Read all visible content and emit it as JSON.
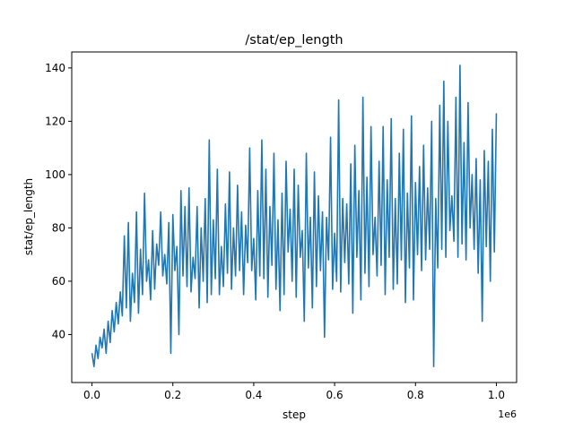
{
  "chart_data": {
    "type": "line",
    "title": "/stat/ep_length",
    "xlabel": "step",
    "ylabel": "stat/ep_length",
    "x_offset_label": "1e6",
    "xlim": [
      -0.05,
      1.05
    ],
    "ylim": [
      22,
      146
    ],
    "xticks": [
      0.0,
      0.2,
      0.4,
      0.6,
      0.8,
      1.0
    ],
    "xtick_labels": [
      "0.0",
      "0.2",
      "0.4",
      "0.6",
      "0.8",
      "1.0"
    ],
    "yticks": [
      40,
      60,
      80,
      100,
      120,
      140
    ],
    "ytick_labels": [
      "40",
      "60",
      "80",
      "100",
      "120",
      "140"
    ],
    "grid": false,
    "legend": "none",
    "series": [
      {
        "color": "#1f77b4",
        "x": [
          0.0,
          0.005,
          0.01,
          0.015,
          0.02,
          0.025,
          0.03,
          0.035,
          0.04,
          0.045,
          0.05,
          0.055,
          0.06,
          0.065,
          0.07,
          0.075,
          0.08,
          0.085,
          0.09,
          0.095,
          0.1,
          0.105,
          0.11,
          0.115,
          0.12,
          0.125,
          0.13,
          0.135,
          0.14,
          0.145,
          0.15,
          0.155,
          0.16,
          0.165,
          0.17,
          0.175,
          0.18,
          0.185,
          0.19,
          0.195,
          0.2,
          0.205,
          0.21,
          0.215,
          0.22,
          0.225,
          0.23,
          0.235,
          0.24,
          0.245,
          0.25,
          0.255,
          0.26,
          0.265,
          0.27,
          0.275,
          0.28,
          0.285,
          0.29,
          0.295,
          0.3,
          0.305,
          0.31,
          0.315,
          0.32,
          0.325,
          0.33,
          0.335,
          0.34,
          0.345,
          0.35,
          0.355,
          0.36,
          0.365,
          0.37,
          0.375,
          0.38,
          0.385,
          0.39,
          0.395,
          0.4,
          0.405,
          0.41,
          0.415,
          0.42,
          0.425,
          0.43,
          0.435,
          0.44,
          0.445,
          0.45,
          0.455,
          0.46,
          0.465,
          0.47,
          0.475,
          0.48,
          0.485,
          0.49,
          0.495,
          0.5,
          0.505,
          0.51,
          0.515,
          0.52,
          0.525,
          0.53,
          0.535,
          0.54,
          0.545,
          0.55,
          0.555,
          0.56,
          0.565,
          0.57,
          0.575,
          0.58,
          0.585,
          0.59,
          0.595,
          0.6,
          0.605,
          0.61,
          0.615,
          0.62,
          0.625,
          0.63,
          0.635,
          0.64,
          0.645,
          0.65,
          0.655,
          0.66,
          0.665,
          0.67,
          0.675,
          0.68,
          0.685,
          0.69,
          0.695,
          0.7,
          0.705,
          0.71,
          0.715,
          0.72,
          0.725,
          0.73,
          0.735,
          0.74,
          0.745,
          0.75,
          0.755,
          0.76,
          0.765,
          0.77,
          0.775,
          0.78,
          0.785,
          0.79,
          0.795,
          0.8,
          0.805,
          0.81,
          0.815,
          0.82,
          0.825,
          0.83,
          0.835,
          0.84,
          0.845,
          0.85,
          0.855,
          0.86,
          0.865,
          0.87,
          0.875,
          0.88,
          0.885,
          0.89,
          0.895,
          0.9,
          0.905,
          0.91,
          0.915,
          0.92,
          0.925,
          0.93,
          0.935,
          0.94,
          0.945,
          0.95,
          0.955,
          0.96,
          0.965,
          0.97,
          0.975,
          0.98,
          0.985,
          0.99,
          0.995,
          1.0
        ],
        "y": [
          33,
          28,
          36,
          31,
          39,
          35,
          42,
          33,
          45,
          37,
          49,
          41,
          52,
          44,
          56,
          47,
          77,
          50,
          82,
          45,
          63,
          52,
          86,
          48,
          72,
          55,
          93,
          60,
          68,
          53,
          79,
          57,
          74,
          66,
          86,
          62,
          70,
          59,
          82,
          33,
          85,
          64,
          73,
          40,
          94,
          62,
          88,
          58,
          95,
          56,
          69,
          61,
          88,
          50,
          80,
          60,
          91,
          52,
          113,
          55,
          83,
          61,
          102,
          55,
          73,
          58,
          89,
          63,
          101,
          57,
          80,
          62,
          96,
          64,
          86,
          55,
          81,
          67,
          110,
          64,
          76,
          53,
          94,
          62,
          113,
          61,
          102,
          54,
          88,
          66,
          108,
          57,
          83,
          49,
          93,
          55,
          105,
          71,
          87,
          60,
          102,
          54,
          96,
          69,
          79,
          45,
          108,
          65,
          84,
          50,
          101,
          58,
          92,
          64,
          86,
          39,
          84,
          68,
          114,
          57,
          78,
          60,
          128,
          56,
          91,
          67,
          89,
          59,
          104,
          48,
          111,
          69,
          94,
          53,
          129,
          63,
          99,
          58,
          118,
          70,
          84,
          62,
          105,
          66,
          118,
          55,
          98,
          69,
          121,
          57,
          91,
          59,
          108,
          68,
          117,
          52,
          93,
          65,
          122,
          53,
          97,
          70,
          103,
          64,
          111,
          68,
          95,
          72,
          120,
          28,
          91,
          65,
          126,
          72,
          135,
          69,
          120,
          79,
          92,
          75,
          129,
          69,
          141,
          74,
          112,
          68,
          127,
          80,
          100,
          72,
          106,
          63,
          98,
          45,
          109,
          73,
          105,
          60,
          117,
          71,
          123
        ]
      }
    ]
  }
}
